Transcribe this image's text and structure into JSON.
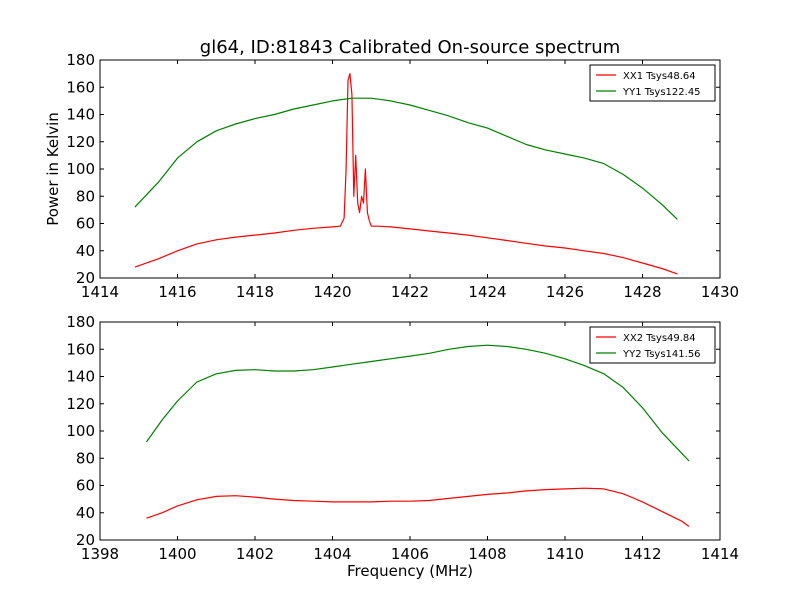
{
  "figure_title": "gl64, ID:81843 Calibrated On-source spectrum",
  "chart_data": [
    {
      "type": "line",
      "panel": "top",
      "title": "gl64, ID:81843 Calibrated On-source spectrum",
      "xlabel": "",
      "ylabel": "Power in Kelvin",
      "xlim": [
        1414,
        1430
      ],
      "ylim": [
        20,
        180
      ],
      "xticks": [
        1414,
        1416,
        1418,
        1420,
        1422,
        1424,
        1426,
        1428,
        1430
      ],
      "yticks": [
        20,
        40,
        60,
        80,
        100,
        120,
        140,
        160,
        180
      ],
      "grid": false,
      "legend_position": "top-right",
      "series": [
        {
          "name": "XX1 Tsys48.64",
          "color": "#ff0000",
          "x": [
            1414.9,
            1415.5,
            1416.0,
            1416.5,
            1417.0,
            1417.5,
            1418.0,
            1418.5,
            1419.0,
            1419.5,
            1420.0,
            1420.2,
            1420.3,
            1420.35,
            1420.4,
            1420.45,
            1420.5,
            1420.55,
            1420.6,
            1420.65,
            1420.7,
            1420.75,
            1420.8,
            1420.85,
            1420.9,
            1420.95,
            1421.0,
            1421.2,
            1421.5,
            1422.0,
            1422.5,
            1423.0,
            1423.5,
            1424.0,
            1424.5,
            1425.0,
            1425.5,
            1426.0,
            1426.5,
            1427.0,
            1427.5,
            1428.0,
            1428.5,
            1428.9
          ],
          "values": [
            28,
            34,
            40,
            45,
            48,
            50,
            51.5,
            53,
            55,
            56.5,
            57.5,
            58,
            64,
            100,
            165,
            170,
            155,
            80,
            110,
            75,
            68,
            80,
            75,
            100,
            68,
            62,
            58,
            58,
            57.5,
            56,
            54.5,
            53,
            51.5,
            49.5,
            47.5,
            45.5,
            43.5,
            42,
            40,
            38,
            35,
            31,
            27,
            23
          ]
        },
        {
          "name": "YY1 Tsys122.45",
          "color": "#008000",
          "x": [
            1414.9,
            1415.5,
            1416.0,
            1416.5,
            1417.0,
            1417.5,
            1418.0,
            1418.5,
            1419.0,
            1419.5,
            1420.0,
            1420.5,
            1421.0,
            1421.5,
            1422.0,
            1422.5,
            1423.0,
            1423.5,
            1424.0,
            1424.5,
            1425.0,
            1425.5,
            1426.0,
            1426.5,
            1427.0,
            1427.5,
            1428.0,
            1428.5,
            1428.9
          ],
          "values": [
            72,
            90,
            108,
            120,
            128,
            133,
            137,
            140,
            144,
            147,
            150,
            152,
            152,
            150,
            147,
            143,
            139,
            134,
            130,
            124,
            118,
            114,
            111,
            108,
            104,
            96,
            86,
            74,
            63
          ]
        }
      ]
    },
    {
      "type": "line",
      "panel": "bottom",
      "title": "",
      "xlabel": "Frequency (MHz)",
      "ylabel": "",
      "xlim": [
        1398,
        1414
      ],
      "ylim": [
        20,
        180
      ],
      "xticks": [
        1398,
        1400,
        1402,
        1404,
        1406,
        1408,
        1410,
        1412,
        1414
      ],
      "yticks": [
        20,
        40,
        60,
        80,
        100,
        120,
        140,
        160,
        180
      ],
      "grid": false,
      "legend_position": "top-right",
      "series": [
        {
          "name": "XX2 Tsys49.84",
          "color": "#ff0000",
          "x": [
            1399.2,
            1399.6,
            1400.0,
            1400.5,
            1401.0,
            1401.5,
            1402.0,
            1402.5,
            1403.0,
            1403.5,
            1404.0,
            1404.5,
            1405.0,
            1405.5,
            1406.0,
            1406.5,
            1407.0,
            1407.5,
            1408.0,
            1408.5,
            1409.0,
            1409.5,
            1410.0,
            1410.5,
            1411.0,
            1411.5,
            1412.0,
            1412.5,
            1413.0,
            1413.2
          ],
          "values": [
            36,
            40,
            45,
            49.5,
            52,
            52.5,
            51.5,
            50,
            49,
            48.5,
            48,
            48,
            48,
            48.5,
            48.5,
            49,
            50.5,
            52,
            53.5,
            54.5,
            56,
            57,
            57.5,
            58,
            57.5,
            54,
            48,
            41,
            34,
            30
          ]
        },
        {
          "name": "YY2 Tsys141.56",
          "color": "#008000",
          "x": [
            1399.2,
            1399.6,
            1400.0,
            1400.5,
            1401.0,
            1401.5,
            1402.0,
            1402.5,
            1403.0,
            1403.5,
            1404.0,
            1404.5,
            1405.0,
            1405.5,
            1406.0,
            1406.5,
            1407.0,
            1407.5,
            1408.0,
            1408.5,
            1409.0,
            1409.5,
            1410.0,
            1410.5,
            1411.0,
            1411.5,
            1412.0,
            1412.5,
            1413.0,
            1413.2
          ],
          "values": [
            92,
            108,
            122,
            136,
            142,
            144.5,
            145,
            144,
            144,
            145,
            147,
            149,
            151,
            153,
            155,
            157,
            160,
            162,
            163,
            162,
            160,
            157,
            153,
            148,
            142,
            132,
            117,
            99,
            84,
            78
          ]
        }
      ]
    }
  ]
}
